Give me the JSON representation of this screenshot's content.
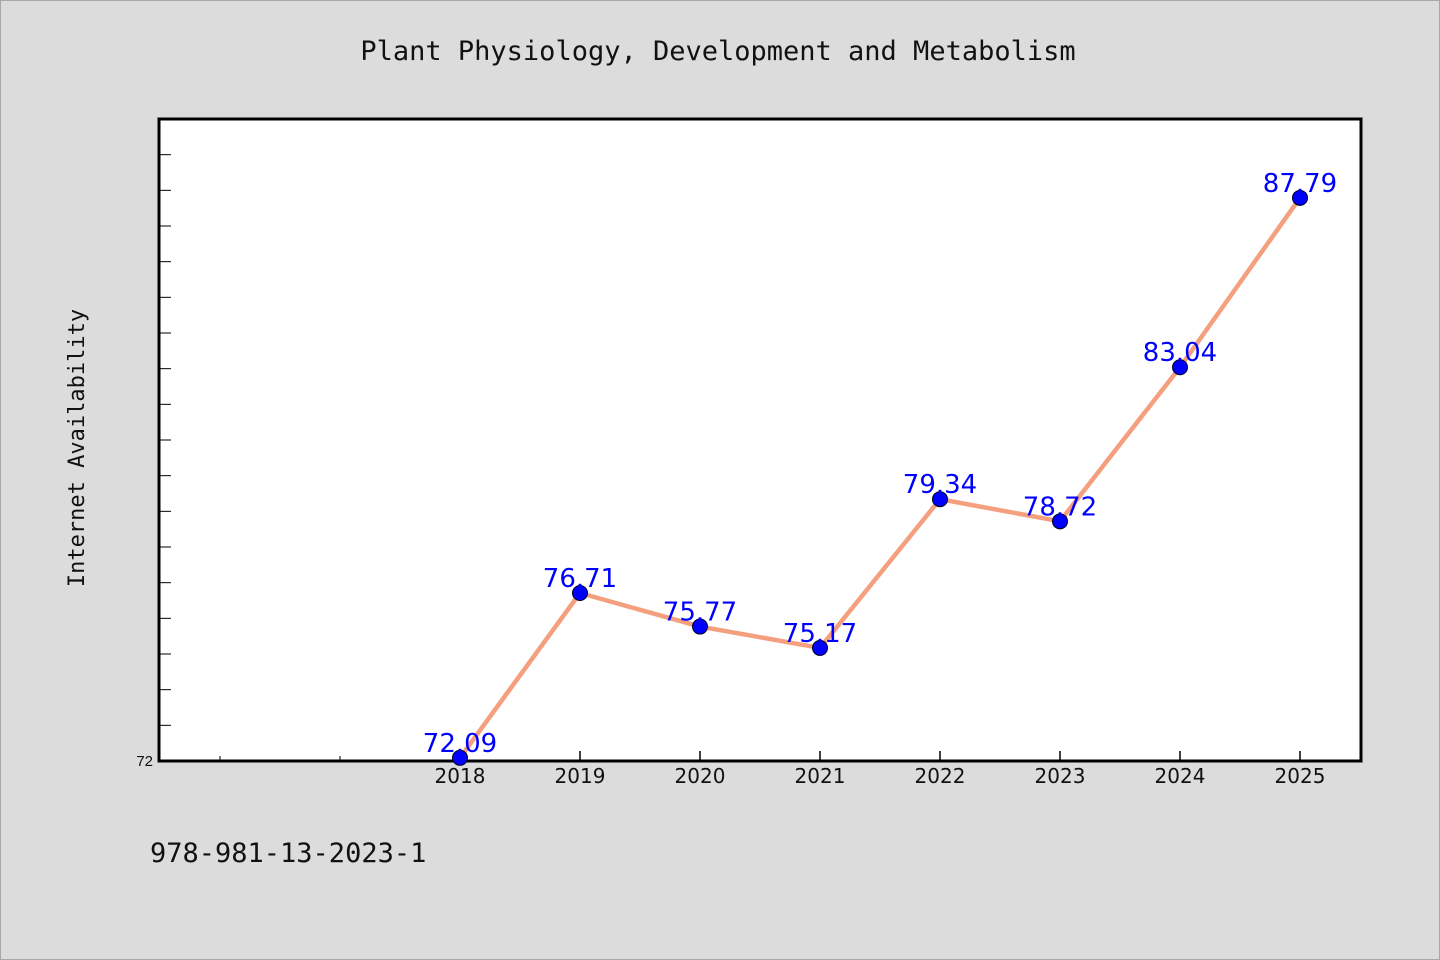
{
  "chart_data": {
    "type": "line",
    "title": "Plant Physiology, Development and Metabolism",
    "xlabel": "",
    "ylabel": "Internet Availability",
    "categories": [
      "2018",
      "2019",
      "2020",
      "2021",
      "2022",
      "2023",
      "2024",
      "2025"
    ],
    "series": [
      {
        "values": [
          72.09,
          76.71,
          75.77,
          75.17,
          79.34,
          78.72,
          83.04,
          87.79
        ],
        "labels": [
          "72.09",
          "76.71",
          "75.77",
          "75.17",
          "79.34",
          "78.72",
          "83.04",
          "87.79"
        ]
      }
    ],
    "ytick_labels": [
      "72"
    ],
    "ylim": [
      72,
      90
    ],
    "grid": false,
    "legend": "none",
    "footnote": "978-981-13-2023-1",
    "colors": {
      "background": "#dcdcdc",
      "plot_background": "#ffffff",
      "line": "#f4a07e",
      "marker": "#0000ff",
      "data_label": "#0000ff",
      "text": "#111111"
    }
  }
}
